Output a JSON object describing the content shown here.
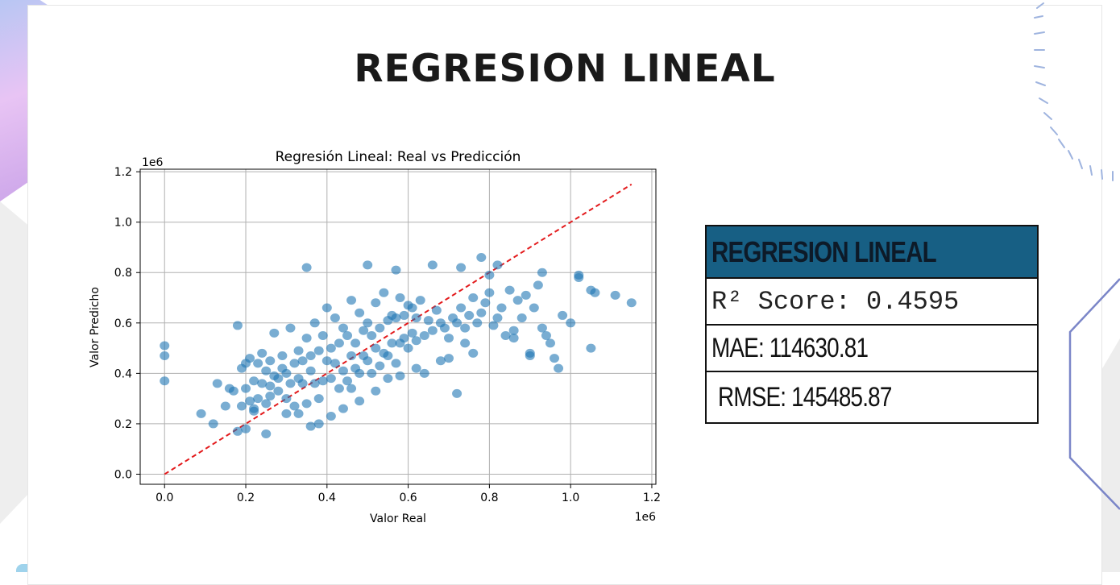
{
  "slide": {
    "title": "REGRESION LINEAL"
  },
  "metrics_table": {
    "header": "REGRESION LINEAL",
    "r2": "R² Score: 0.4595",
    "mae": "MAE: 114630.81",
    "rmse": "RMSE: 145485.87"
  },
  "colors": {
    "header_bg": "#175f84",
    "scatter": "#1f77b4",
    "reference_line": "#e31a1c"
  },
  "chart_data": {
    "type": "scatter",
    "title": "Regresión Lineal: Real vs Predicción",
    "xlabel": "Valor Real",
    "ylabel": "Valor Predicho",
    "x_offset_label": "1e6",
    "y_offset_label": "1e6",
    "xlim": [
      -0.06,
      1.21
    ],
    "ylim": [
      -0.04,
      1.21
    ],
    "xticks": [
      0.0,
      0.2,
      0.4,
      0.6,
      0.8,
      1.0,
      1.2
    ],
    "xtick_labels": [
      "0.0",
      "0.2",
      "0.4",
      "0.6",
      "0.8",
      "1.0",
      "1.2"
    ],
    "yticks": [
      0.0,
      0.2,
      0.4,
      0.6,
      0.8,
      1.0,
      1.2
    ],
    "ytick_labels": [
      "0.0",
      "0.2",
      "0.4",
      "0.6",
      "0.8",
      "1.0",
      "1.2"
    ],
    "grid": true,
    "reference_line": {
      "x": [
        0.0,
        1.15
      ],
      "y": [
        0.0,
        1.15
      ],
      "style": "dashed"
    },
    "series": [
      {
        "x": [
          0.0,
          0.0,
          0.0,
          0.09,
          0.12,
          0.13,
          0.15,
          0.16,
          0.17,
          0.18,
          0.19,
          0.19,
          0.2,
          0.2,
          0.21,
          0.21,
          0.22,
          0.22,
          0.23,
          0.23,
          0.24,
          0.24,
          0.25,
          0.25,
          0.26,
          0.26,
          0.27,
          0.27,
          0.28,
          0.28,
          0.29,
          0.29,
          0.3,
          0.3,
          0.31,
          0.31,
          0.32,
          0.32,
          0.33,
          0.33,
          0.34,
          0.34,
          0.35,
          0.35,
          0.36,
          0.36,
          0.37,
          0.37,
          0.38,
          0.38,
          0.39,
          0.39,
          0.4,
          0.4,
          0.41,
          0.41,
          0.42,
          0.42,
          0.43,
          0.43,
          0.44,
          0.44,
          0.45,
          0.45,
          0.46,
          0.46,
          0.47,
          0.47,
          0.48,
          0.48,
          0.49,
          0.49,
          0.5,
          0.5,
          0.51,
          0.51,
          0.52,
          0.52,
          0.53,
          0.53,
          0.54,
          0.54,
          0.55,
          0.55,
          0.56,
          0.56,
          0.57,
          0.57,
          0.58,
          0.58,
          0.59,
          0.59,
          0.6,
          0.6,
          0.61,
          0.61,
          0.62,
          0.62,
          0.63,
          0.64,
          0.65,
          0.66,
          0.67,
          0.68,
          0.69,
          0.7,
          0.71,
          0.72,
          0.73,
          0.74,
          0.75,
          0.76,
          0.77,
          0.78,
          0.79,
          0.8,
          0.81,
          0.82,
          0.83,
          0.84,
          0.85,
          0.86,
          0.87,
          0.88,
          0.89,
          0.9,
          0.91,
          0.92,
          0.93,
          0.94,
          0.95,
          0.96,
          0.97,
          0.98,
          1.0,
          1.02,
          1.05,
          1.05,
          1.06,
          1.11,
          1.15,
          0.35,
          0.5,
          0.57,
          0.66,
          0.73,
          0.78,
          0.8,
          0.82,
          0.93,
          1.02,
          0.25,
          0.2,
          0.18,
          0.3,
          0.38,
          0.44,
          0.48,
          0.52,
          0.55,
          0.62,
          0.68,
          0.72,
          0.76,
          0.22,
          0.26,
          0.33,
          0.36,
          0.41,
          0.46,
          0.58,
          0.64,
          0.7,
          0.74,
          0.86,
          0.9
        ],
        "y": [
          0.51,
          0.47,
          0.37,
          0.24,
          0.2,
          0.36,
          0.27,
          0.34,
          0.33,
          0.59,
          0.27,
          0.42,
          0.44,
          0.34,
          0.46,
          0.29,
          0.37,
          0.25,
          0.44,
          0.3,
          0.36,
          0.48,
          0.41,
          0.28,
          0.45,
          0.35,
          0.56,
          0.39,
          0.38,
          0.33,
          0.47,
          0.42,
          0.4,
          0.3,
          0.58,
          0.36,
          0.44,
          0.27,
          0.49,
          0.38,
          0.45,
          0.36,
          0.54,
          0.28,
          0.47,
          0.41,
          0.6,
          0.36,
          0.49,
          0.3,
          0.55,
          0.37,
          0.66,
          0.45,
          0.5,
          0.38,
          0.62,
          0.44,
          0.52,
          0.34,
          0.58,
          0.41,
          0.55,
          0.37,
          0.69,
          0.47,
          0.52,
          0.42,
          0.64,
          0.4,
          0.57,
          0.47,
          0.6,
          0.45,
          0.55,
          0.4,
          0.68,
          0.5,
          0.58,
          0.43,
          0.72,
          0.48,
          0.61,
          0.47,
          0.63,
          0.52,
          0.62,
          0.44,
          0.7,
          0.52,
          0.63,
          0.54,
          0.67,
          0.5,
          0.66,
          0.56,
          0.62,
          0.53,
          0.69,
          0.55,
          0.61,
          0.57,
          0.65,
          0.6,
          0.58,
          0.54,
          0.62,
          0.6,
          0.66,
          0.58,
          0.63,
          0.7,
          0.6,
          0.64,
          0.68,
          0.72,
          0.59,
          0.62,
          0.66,
          0.55,
          0.73,
          0.57,
          0.69,
          0.62,
          0.71,
          0.47,
          0.66,
          0.75,
          0.58,
          0.55,
          0.52,
          0.46,
          0.42,
          0.63,
          0.6,
          0.79,
          0.73,
          0.5,
          0.72,
          0.71,
          0.68,
          0.82,
          0.83,
          0.81,
          0.83,
          0.82,
          0.86,
          0.79,
          0.83,
          0.8,
          0.78,
          0.16,
          0.18,
          0.17,
          0.24,
          0.2,
          0.26,
          0.29,
          0.33,
          0.38,
          0.42,
          0.45,
          0.32,
          0.48,
          0.26,
          0.31,
          0.24,
          0.19,
          0.23,
          0.34,
          0.39,
          0.4,
          0.46,
          0.52,
          0.54,
          0.48
        ]
      }
    ]
  }
}
